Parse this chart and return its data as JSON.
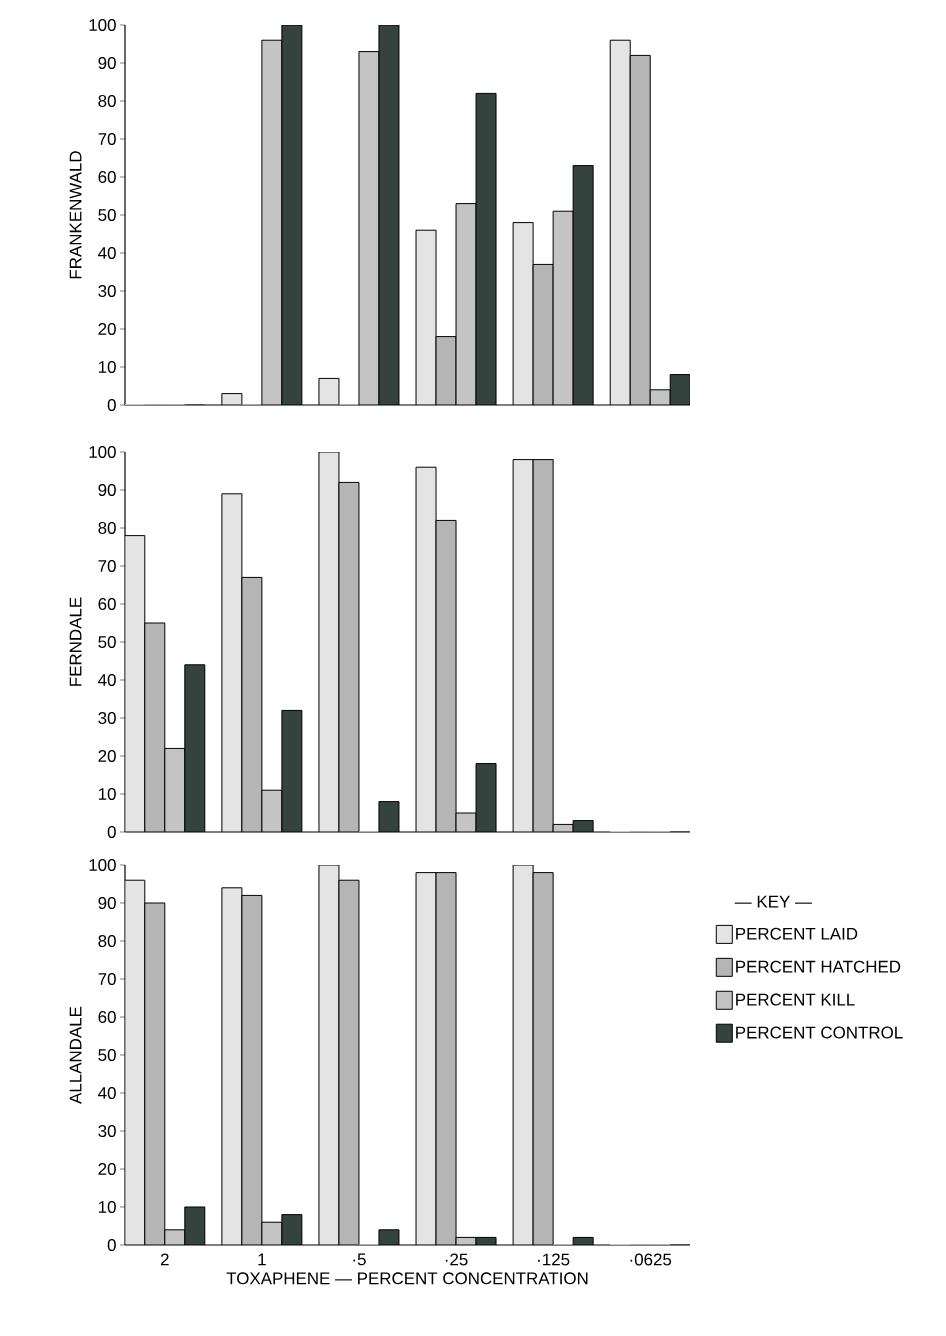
{
  "chart_data": [
    {
      "type": "bar",
      "ylabel": "FRANKENWALD",
      "categories": [
        null,
        null,
        null,
        null,
        null,
        null
      ],
      "ylim": [
        0,
        100
      ],
      "yticks": [
        0,
        10,
        20,
        30,
        40,
        50,
        60,
        70,
        80,
        90,
        100
      ],
      "tick_labels": "y",
      "series": [
        {
          "color": "#e4e4e4",
          "values": [
            0,
            3,
            7,
            46,
            48,
            96
          ]
        },
        {
          "color": "#b5b5b5",
          "values": [
            0,
            0,
            0,
            18,
            37,
            92
          ]
        },
        {
          "color": "#c4c4c4",
          "values": [
            0,
            96,
            93,
            53,
            51,
            4
          ]
        },
        {
          "color": "#34433e",
          "values": [
            0,
            100,
            100,
            82,
            63,
            8
          ]
        }
      ]
    },
    {
      "type": "bar",
      "ylabel": "FERNDALE",
      "categories": [
        null,
        null,
        null,
        null,
        null,
        null
      ],
      "ylim": [
        0,
        100
      ],
      "yticks": [
        0,
        10,
        20,
        30,
        40,
        50,
        60,
        70,
        80,
        90,
        100
      ],
      "tick_labels": "y",
      "series": [
        {
          "color": "#e4e4e4",
          "values": [
            78,
            89,
            100,
            96,
            98,
            0
          ]
        },
        {
          "color": "#b5b5b5",
          "values": [
            55,
            67,
            92,
            82,
            98,
            0
          ]
        },
        {
          "color": "#c4c4c4",
          "values": [
            22,
            11,
            0,
            5,
            2,
            0
          ]
        },
        {
          "color": "#34433e",
          "values": [
            44,
            32,
            8,
            18,
            3,
            0
          ]
        }
      ]
    },
    {
      "type": "bar",
      "ylabel": "ALLANDALE",
      "xlabel": "TOXAPHENE — PERCENT CONCENTRATION",
      "categories": [
        "2",
        "1",
        "·5",
        "·25",
        "·125",
        "·0625"
      ],
      "ylim": [
        0,
        100
      ],
      "yticks": [
        0,
        10,
        20,
        30,
        40,
        50,
        60,
        70,
        80,
        90,
        100
      ],
      "legend": "right",
      "legend_title": "— KEY —",
      "series": [
        {
          "name": "PERCENT LAID",
          "color": "#e4e4e4",
          "values": [
            96,
            94,
            100,
            98,
            100,
            0
          ]
        },
        {
          "name": "PERCENT HATCHED",
          "color": "#b5b5b5",
          "values": [
            90,
            92,
            96,
            98,
            98,
            0
          ]
        },
        {
          "name": "PERCENT KILL",
          "color": "#c4c4c4",
          "values": [
            4,
            6,
            0,
            2,
            0,
            0
          ]
        },
        {
          "name": "PERCENT CONTROL",
          "color": "#34433e",
          "values": [
            10,
            8,
            4,
            2,
            2,
            0
          ]
        }
      ]
    }
  ]
}
